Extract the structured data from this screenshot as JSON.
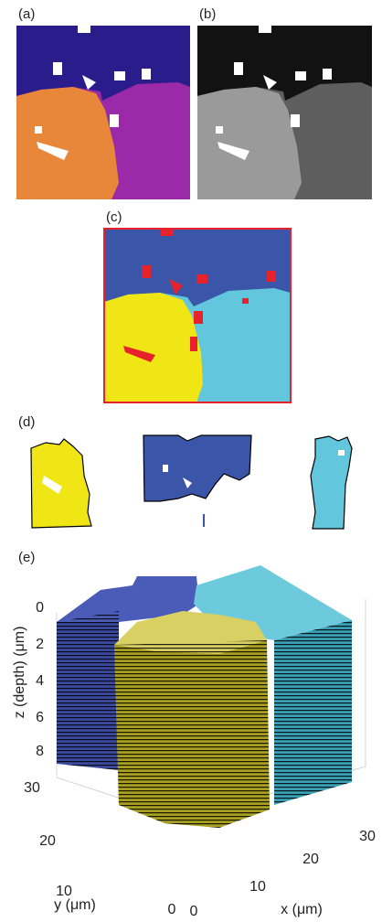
{
  "panels": {
    "a": {
      "label": "(a)"
    },
    "b": {
      "label": "(b)"
    },
    "c": {
      "label": "(c)"
    },
    "d": {
      "label": "(d)"
    },
    "e": {
      "label": "(e)",
      "z_axis": {
        "title": "z (depth) (μm)",
        "ticks": [
          0,
          2,
          4,
          6,
          8
        ]
      },
      "y_axis": {
        "title": "y (μm)",
        "ticks": [
          30,
          20,
          10,
          0
        ]
      },
      "x_axis": {
        "title": "x (μm)",
        "ticks": [
          0,
          10,
          20,
          30
        ]
      }
    }
  }
}
